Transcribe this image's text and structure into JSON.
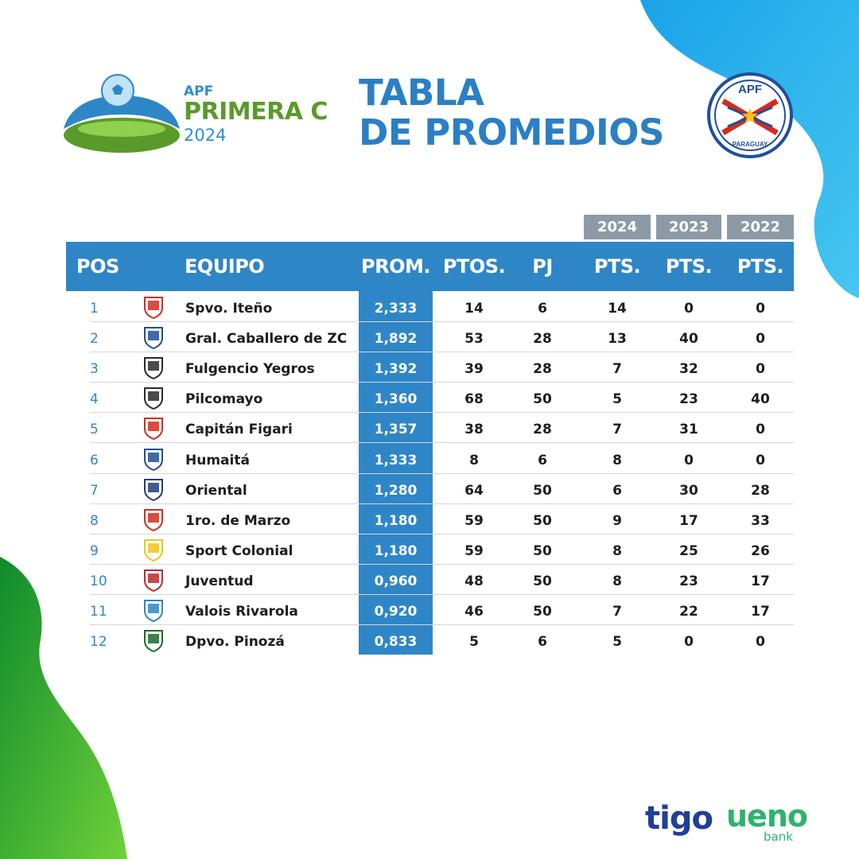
{
  "header": {
    "league_apf": "APF",
    "league_name": "PRIMERA C",
    "league_year": "2024",
    "title_line1": "TABLA",
    "title_line2": "DE PROMEDIOS",
    "federation_logo_text": "APF",
    "federation_logo_sub": "PARAGUAY"
  },
  "seasons": [
    "2024",
    "2023",
    "2022"
  ],
  "columns": [
    "POS",
    "EQUIPO",
    "PROM.",
    "PTOS.",
    "PJ",
    "PTS.",
    "PTS.",
    "PTS."
  ],
  "rows": [
    {
      "pos": "1",
      "team": "Spvo. Iteño",
      "prom": "2,333",
      "ptos": "14",
      "pj": "6",
      "pts2024": "14",
      "pts2023": "0",
      "pts2022": "0",
      "crest": "team-crest-icon"
    },
    {
      "pos": "2",
      "team": "Gral. Caballero de ZC",
      "prom": "1,892",
      "ptos": "53",
      "pj": "28",
      "pts2024": "13",
      "pts2023": "40",
      "pts2022": "0",
      "crest": "team-crest-icon"
    },
    {
      "pos": "3",
      "team": "Fulgencio Yegros",
      "prom": "1,392",
      "ptos": "39",
      "pj": "28",
      "pts2024": "7",
      "pts2023": "32",
      "pts2022": "0",
      "crest": "team-crest-icon"
    },
    {
      "pos": "4",
      "team": "Pilcomayo",
      "prom": "1,360",
      "ptos": "68",
      "pj": "50",
      "pts2024": "5",
      "pts2023": "23",
      "pts2022": "40",
      "crest": "team-crest-icon"
    },
    {
      "pos": "5",
      "team": "Capitán Figari",
      "prom": "1,357",
      "ptos": "38",
      "pj": "28",
      "pts2024": "7",
      "pts2023": "31",
      "pts2022": "0",
      "crest": "team-crest-icon"
    },
    {
      "pos": "6",
      "team": "Humaitá",
      "prom": "1,333",
      "ptos": "8",
      "pj": "6",
      "pts2024": "8",
      "pts2023": "0",
      "pts2022": "0",
      "crest": "team-crest-icon"
    },
    {
      "pos": "7",
      "team": "Oriental",
      "prom": "1,280",
      "ptos": "64",
      "pj": "50",
      "pts2024": "6",
      "pts2023": "30",
      "pts2022": "28",
      "crest": "team-crest-icon"
    },
    {
      "pos": "8",
      "team": "1ro. de Marzo",
      "prom": "1,180",
      "ptos": "59",
      "pj": "50",
      "pts2024": "9",
      "pts2023": "17",
      "pts2022": "33",
      "crest": "team-crest-icon"
    },
    {
      "pos": "9",
      "team": "Sport Colonial",
      "prom": "1,180",
      "ptos": "59",
      "pj": "50",
      "pts2024": "8",
      "pts2023": "25",
      "pts2022": "26",
      "crest": "team-crest-icon"
    },
    {
      "pos": "10",
      "team": "Juventud",
      "prom": "0,960",
      "ptos": "48",
      "pj": "50",
      "pts2024": "8",
      "pts2023": "23",
      "pts2022": "17",
      "crest": "team-crest-icon"
    },
    {
      "pos": "11",
      "team": "Valois Rivarola",
      "prom": "0,920",
      "ptos": "46",
      "pj": "50",
      "pts2024": "7",
      "pts2023": "22",
      "pts2022": "17",
      "crest": "team-crest-icon"
    },
    {
      "pos": "12",
      "team": "Dpvo. Pinozá",
      "prom": "0,833",
      "ptos": "5",
      "pj": "6",
      "pts2024": "5",
      "pts2023": "0",
      "pts2022": "0",
      "crest": "team-crest-icon"
    }
  ],
  "sponsors": {
    "tigo": "tigo",
    "ueno": "ueno",
    "ueno_sub": "bank"
  },
  "colors": {
    "accent_blue": "#2f86c7",
    "league_green": "#5a9a2a",
    "season_grey": "#8c9aa6",
    "paraguay_red": "#d52b1e"
  }
}
